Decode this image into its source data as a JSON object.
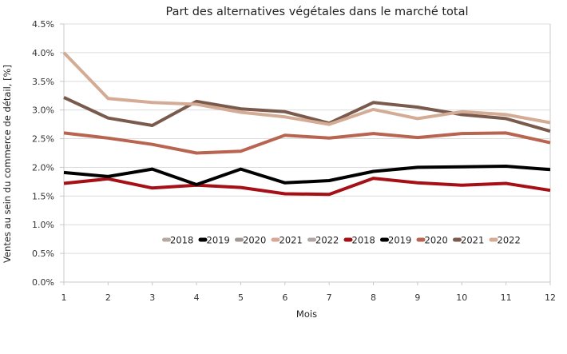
{
  "chart_data": {
    "type": "line",
    "title": "Part des alternatives végétales dans le marché total",
    "xlabel": "Mois",
    "ylabel": "Ventes au sein du commerce de détail, [%]",
    "x": [
      1,
      2,
      3,
      4,
      5,
      6,
      7,
      8,
      9,
      10,
      11,
      12
    ],
    "x_tick_labels": [
      "1",
      "2",
      "3",
      "4",
      "5",
      "6",
      "7",
      "8",
      "9",
      "10",
      "11",
      "12"
    ],
    "ylim": [
      0,
      4.5
    ],
    "y_ticks": [
      0,
      0.5,
      1.0,
      1.5,
      2.0,
      2.5,
      3.0,
      3.5,
      4.0,
      4.5
    ],
    "y_tick_labels": [
      "0.0%",
      "0.5%",
      "1.0%",
      "1.5%",
      "2.0%",
      "2.5%",
      "3.0%",
      "3.5%",
      "4.0%",
      "4.5%"
    ],
    "grid": true,
    "legend_position": "center-bottom-inside",
    "legend": [
      {
        "name": "2018",
        "color": "#b8a8a4",
        "has_line": false
      },
      {
        "name": "2019",
        "color": "#000000",
        "has_line": false
      },
      {
        "name": "2020",
        "color": "#a39795",
        "has_line": false
      },
      {
        "name": "2021",
        "color": "#d9a795",
        "has_line": false
      },
      {
        "name": "2022",
        "color": "#b0a6a2",
        "has_line": false
      },
      {
        "name": "2018",
        "color": "#a50f15",
        "has_line": true
      },
      {
        "name": "2019",
        "color": "#000000",
        "has_line": true
      },
      {
        "name": "2020",
        "color": "#b86450",
        "has_line": true
      },
      {
        "name": "2021",
        "color": "#7a5a4c",
        "has_line": true
      },
      {
        "name": "2022",
        "color": "#d4ac96",
        "has_line": true
      }
    ],
    "series": [
      {
        "name": "2018",
        "color": "#a50f15",
        "values": [
          1.72,
          1.8,
          1.64,
          1.69,
          1.65,
          1.54,
          1.53,
          1.81,
          1.73,
          1.69,
          1.72,
          1.6
        ]
      },
      {
        "name": "2019",
        "color": "#000000",
        "values": [
          1.91,
          1.84,
          1.97,
          1.7,
          1.97,
          1.73,
          1.77,
          1.93,
          2.0,
          2.01,
          2.02,
          1.96
        ]
      },
      {
        "name": "2020",
        "color": "#b86450",
        "values": [
          2.6,
          2.51,
          2.4,
          2.25,
          2.28,
          2.56,
          2.51,
          2.59,
          2.52,
          2.59,
          2.6,
          2.43
        ]
      },
      {
        "name": "2021",
        "color": "#7a5a4c",
        "values": [
          3.22,
          2.86,
          2.73,
          3.15,
          3.02,
          2.97,
          2.77,
          3.13,
          3.05,
          2.92,
          2.85,
          2.63
        ]
      },
      {
        "name": "2022",
        "color": "#d4ac96",
        "values": [
          4.0,
          3.2,
          3.13,
          3.1,
          2.96,
          2.88,
          2.75,
          3.01,
          2.85,
          2.97,
          2.92,
          2.78
        ]
      }
    ]
  }
}
